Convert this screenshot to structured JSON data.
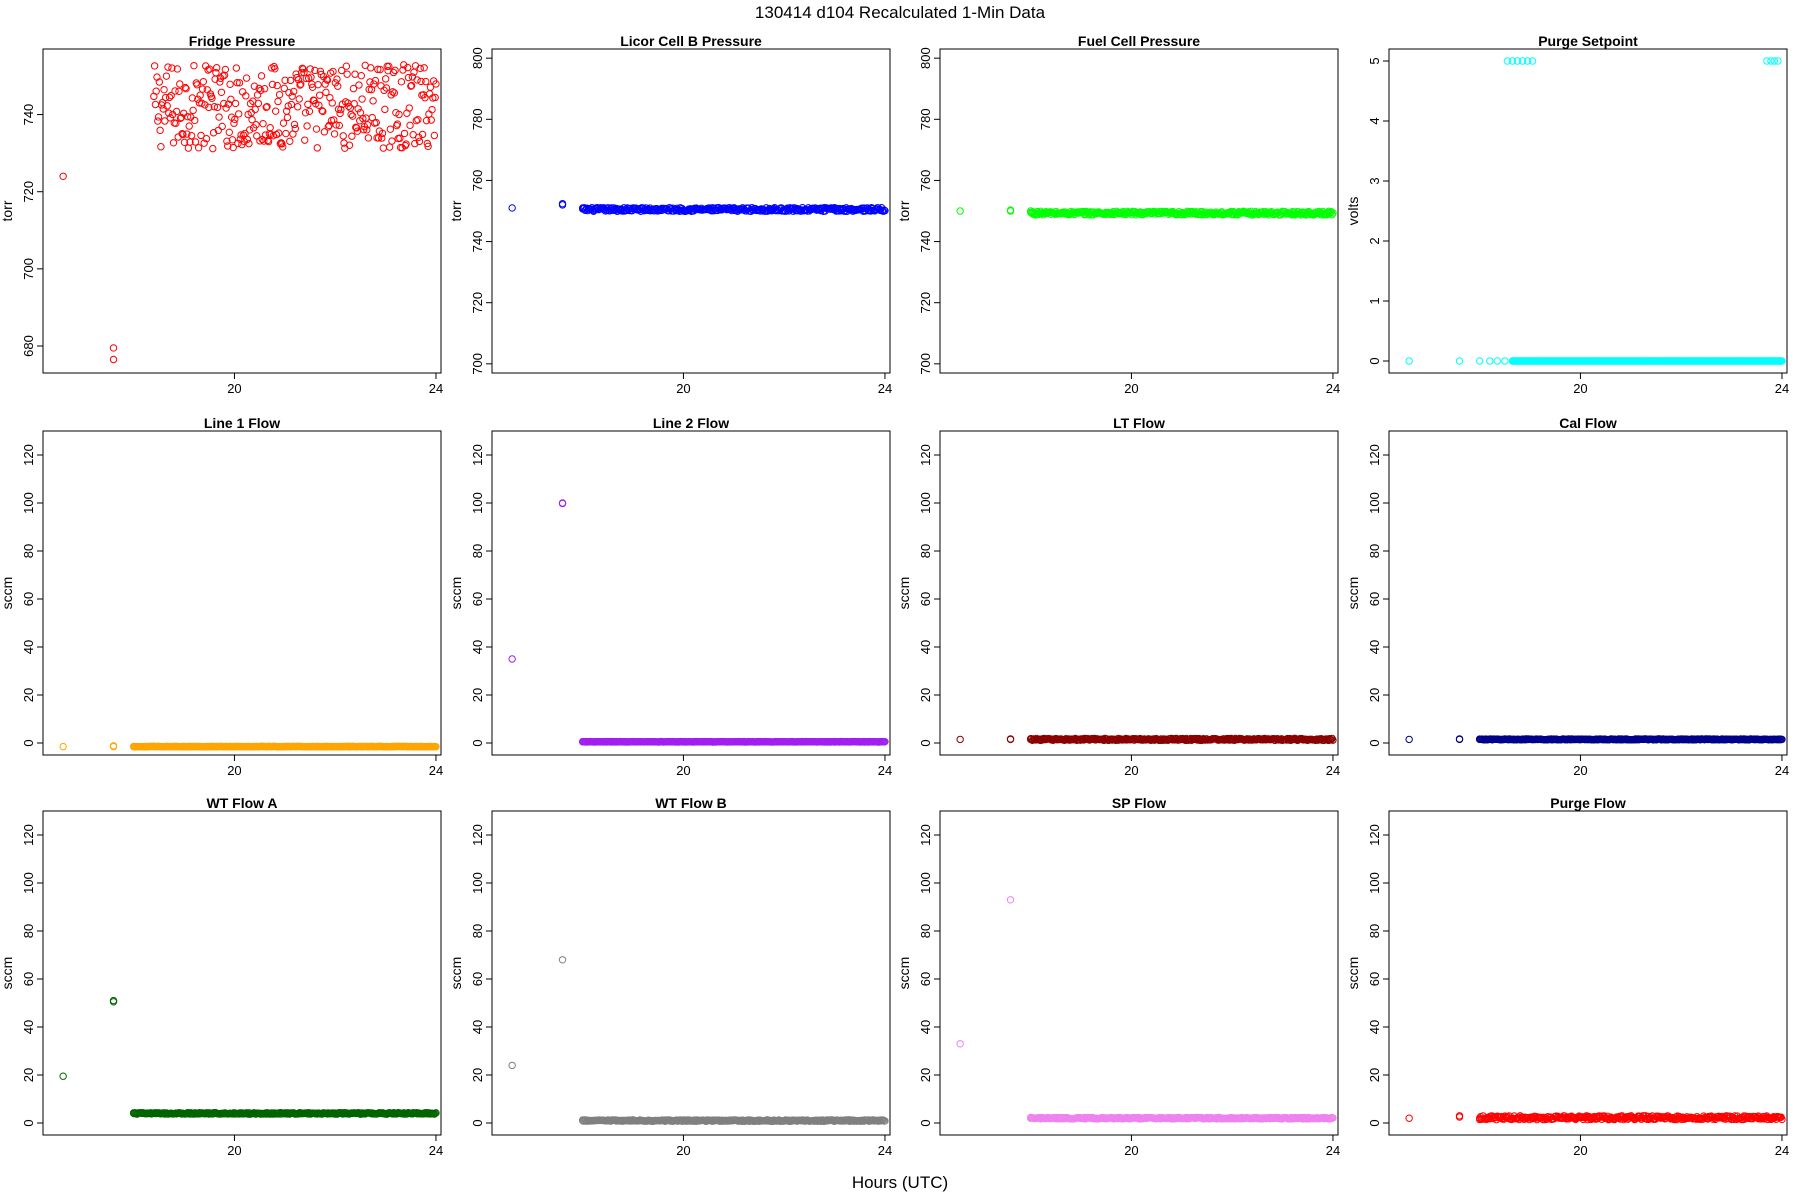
{
  "figure": {
    "title": "130414   d104   Recalculated 1-Min Data",
    "xlabel": "Hours (UTC)"
  },
  "chart_data": [
    {
      "type": "scatter",
      "title": "Fridge Pressure",
      "ylabel": "torr",
      "color": "#ff0000",
      "xlim": [
        16.2,
        24.1
      ],
      "ylim": [
        673,
        757
      ],
      "xticks": [
        20,
        24
      ],
      "yticks": [
        680,
        700,
        720,
        740
      ],
      "points": [
        [
          16.6,
          724
        ],
        [
          17.6,
          676.5
        ],
        [
          17.6,
          679.5
        ]
      ],
      "band": {
        "x0": 18.4,
        "x1": 24.0,
        "center": 742,
        "spread": 11
      }
    },
    {
      "type": "scatter",
      "title": "Licor Cell B Pressure",
      "ylabel": "torr",
      "color": "#0000ff",
      "xlim": [
        16.2,
        24.1
      ],
      "ylim": [
        697,
        803
      ],
      "xticks": [
        20,
        24
      ],
      "yticks": [
        700,
        720,
        740,
        760,
        780,
        800
      ],
      "points": [
        [
          16.6,
          751
        ],
        [
          17.6,
          752
        ],
        [
          17.6,
          752.4
        ],
        [
          18.0,
          751
        ]
      ],
      "band": {
        "x0": 18.0,
        "x1": 24.0,
        "center": 750.5,
        "spread": 0.6
      }
    },
    {
      "type": "scatter",
      "title": "Fuel Cell Pressure",
      "ylabel": "torr",
      "color": "#00ff00",
      "xlim": [
        16.2,
        24.1
      ],
      "ylim": [
        697,
        803
      ],
      "xticks": [
        20,
        24
      ],
      "yticks": [
        700,
        720,
        740,
        760,
        780,
        800
      ],
      "points": [
        [
          16.6,
          750
        ],
        [
          17.6,
          750
        ],
        [
          17.6,
          750.3
        ],
        [
          18.0,
          750
        ]
      ],
      "band": {
        "x0": 18.0,
        "x1": 24.0,
        "center": 749.3,
        "spread": 0.6
      }
    },
    {
      "type": "scatter",
      "title": "Purge Setpoint",
      "ylabel": "volts",
      "color": "#00ffff",
      "xlim": [
        16.2,
        24.1
      ],
      "ylim": [
        -0.2,
        5.2
      ],
      "xticks": [
        20,
        24
      ],
      "yticks": [
        0,
        1,
        2,
        3,
        4,
        5
      ],
      "points": [
        [
          16.6,
          0
        ],
        [
          17.6,
          0
        ],
        [
          18.0,
          0
        ],
        [
          18.2,
          0
        ],
        [
          18.35,
          0
        ],
        [
          18.5,
          0
        ],
        [
          18.55,
          5
        ],
        [
          18.65,
          5
        ],
        [
          18.75,
          5
        ],
        [
          18.85,
          5
        ],
        [
          18.95,
          5
        ],
        [
          19.05,
          5
        ],
        [
          23.7,
          5
        ],
        [
          23.78,
          5
        ],
        [
          23.85,
          5
        ],
        [
          23.92,
          5
        ],
        [
          23.75,
          0
        ],
        [
          23.95,
          0
        ]
      ],
      "band": {
        "x0": 18.65,
        "x1": 24.0,
        "center": 0,
        "spread": 0
      }
    },
    {
      "type": "scatter",
      "title": "Line 1 Flow",
      "ylabel": "sccm",
      "color": "#ffa500",
      "xlim": [
        16.2,
        24.1
      ],
      "ylim": [
        -5,
        130
      ],
      "xticks": [
        20,
        24
      ],
      "yticks": [
        0,
        20,
        40,
        60,
        80,
        100,
        120
      ],
      "points": [
        [
          16.6,
          -1.5
        ],
        [
          17.6,
          -1.5
        ],
        [
          17.6,
          -1.2
        ],
        [
          18.0,
          -1.5
        ]
      ],
      "band": {
        "x0": 18.0,
        "x1": 24.0,
        "center": -1.5,
        "spread": 0.1
      }
    },
    {
      "type": "scatter",
      "title": "Line 2 Flow",
      "ylabel": "sccm",
      "color": "#a020f0",
      "xlim": [
        16.2,
        24.1
      ],
      "ylim": [
        -5,
        130
      ],
      "xticks": [
        20,
        24
      ],
      "yticks": [
        0,
        20,
        40,
        60,
        80,
        100,
        120
      ],
      "points": [
        [
          16.6,
          35
        ],
        [
          17.6,
          99.8
        ],
        [
          17.6,
          100
        ],
        [
          18.0,
          0.5
        ]
      ],
      "band": {
        "x0": 18.0,
        "x1": 24.0,
        "center": 0.5,
        "spread": 0.1
      }
    },
    {
      "type": "scatter",
      "title": "LT Flow",
      "ylabel": "sccm",
      "color": "#8b0000",
      "xlim": [
        16.2,
        24.1
      ],
      "ylim": [
        -5,
        130
      ],
      "xticks": [
        20,
        24
      ],
      "yticks": [
        0,
        20,
        40,
        60,
        80,
        100,
        120
      ],
      "points": [
        [
          16.6,
          1.5
        ],
        [
          17.6,
          1.7
        ],
        [
          17.6,
          1.5
        ],
        [
          18.0,
          1.5
        ]
      ],
      "band": {
        "x0": 18.0,
        "x1": 24.0,
        "center": 1.5,
        "spread": 0.4
      }
    },
    {
      "type": "scatter",
      "title": "Cal Flow",
      "ylabel": "sccm",
      "color": "#00008b",
      "xlim": [
        16.2,
        24.1
      ],
      "ylim": [
        -5,
        130
      ],
      "xticks": [
        20,
        24
      ],
      "yticks": [
        0,
        20,
        40,
        60,
        80,
        100,
        120
      ],
      "points": [
        [
          16.6,
          1.5
        ],
        [
          17.6,
          1.5
        ],
        [
          17.6,
          1.7
        ],
        [
          18.0,
          1.5
        ]
      ],
      "band": {
        "x0": 18.0,
        "x1": 24.0,
        "center": 1.5,
        "spread": 0.2
      }
    },
    {
      "type": "scatter",
      "title": "WT Flow A",
      "ylabel": "sccm",
      "color": "#006400",
      "xlim": [
        16.2,
        24.1
      ],
      "ylim": [
        -5,
        130
      ],
      "xticks": [
        20,
        24
      ],
      "yticks": [
        0,
        20,
        40,
        60,
        80,
        100,
        120
      ],
      "points": [
        [
          16.6,
          19.5
        ],
        [
          17.6,
          50.5
        ],
        [
          17.6,
          51
        ],
        [
          18.0,
          4
        ]
      ],
      "band": {
        "x0": 18.0,
        "x1": 24.0,
        "center": 4,
        "spread": 0.3
      }
    },
    {
      "type": "scatter",
      "title": "WT Flow B",
      "ylabel": "sccm",
      "color": "#808080",
      "xlim": [
        16.2,
        24.1
      ],
      "ylim": [
        -5,
        130
      ],
      "xticks": [
        20,
        24
      ],
      "yticks": [
        0,
        20,
        40,
        60,
        80,
        100,
        120
      ],
      "points": [
        [
          16.6,
          24
        ],
        [
          17.6,
          68
        ],
        [
          18.0,
          1
        ]
      ],
      "band": {
        "x0": 18.0,
        "x1": 24.0,
        "center": 1,
        "spread": 0.3
      }
    },
    {
      "type": "scatter",
      "title": "SP Flow",
      "ylabel": "sccm",
      "color": "#ee82ee",
      "xlim": [
        16.2,
        24.1
      ],
      "ylim": [
        -5,
        130
      ],
      "xticks": [
        20,
        24
      ],
      "yticks": [
        0,
        20,
        40,
        60,
        80,
        100,
        120
      ],
      "points": [
        [
          16.6,
          33
        ],
        [
          17.6,
          93
        ],
        [
          18.0,
          2
        ]
      ],
      "band": {
        "x0": 18.0,
        "x1": 24.0,
        "center": 2,
        "spread": 0.3
      }
    },
    {
      "type": "scatter",
      "title": "Purge Flow",
      "ylabel": "sccm",
      "color": "#ff0000",
      "xlim": [
        16.2,
        24.1
      ],
      "ylim": [
        -5,
        130
      ],
      "xticks": [
        20,
        24
      ],
      "yticks": [
        0,
        20,
        40,
        60,
        80,
        100,
        120
      ],
      "points": [
        [
          16.6,
          2
        ],
        [
          17.6,
          2.5
        ],
        [
          17.6,
          3
        ],
        [
          18.0,
          2
        ]
      ],
      "band": {
        "x0": 18.0,
        "x1": 24.0,
        "center": 2.2,
        "spread": 0.8
      }
    }
  ]
}
